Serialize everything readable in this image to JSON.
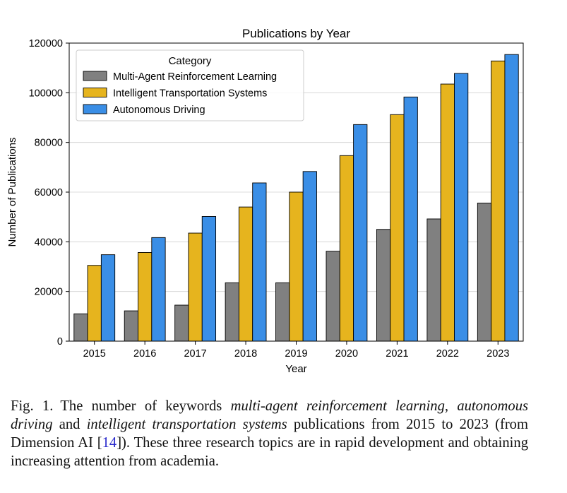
{
  "chart_data": {
    "type": "bar",
    "title": "Publications by Year",
    "xlabel": "Year",
    "ylabel": "Number of Publications",
    "ylim": [
      0,
      120000
    ],
    "yticks": [
      0,
      20000,
      40000,
      60000,
      80000,
      100000,
      120000
    ],
    "grid": "horizontal",
    "legend_title": "Category",
    "legend_position": "top-left",
    "categories": [
      "2015",
      "2016",
      "2017",
      "2018",
      "2019",
      "2020",
      "2021",
      "2022",
      "2023"
    ],
    "series": [
      {
        "name": "Multi-Agent Reinforcement Learning",
        "color": "#808080",
        "values": [
          11000,
          12200,
          14500,
          23500,
          23500,
          36200,
          45000,
          49200,
          55600
        ]
      },
      {
        "name": "Intelligent Transportation Systems",
        "color": "#e6b41e",
        "values": [
          30500,
          35700,
          43500,
          54000,
          60000,
          74700,
          91200,
          103500,
          112800
        ]
      },
      {
        "name": "Autonomous Driving",
        "color": "#3a8ee6",
        "values": [
          34800,
          41700,
          50200,
          63700,
          68300,
          87200,
          98300,
          107800,
          115400
        ]
      }
    ]
  },
  "caption": {
    "label": "Fig. 1.",
    "t1": "The number of keywords ",
    "k1": "multi-agent reinforcement learning",
    "t2": ", ",
    "k2": "autonomous driving",
    "t3": " and ",
    "k3": "intelligent transportation systems",
    "t4": " publications from 2015 to 2023 (from Dimension AI [",
    "ref": "14",
    "t5": "]). These three research topics are in rapid development and obtaining increasing attention from academia."
  }
}
